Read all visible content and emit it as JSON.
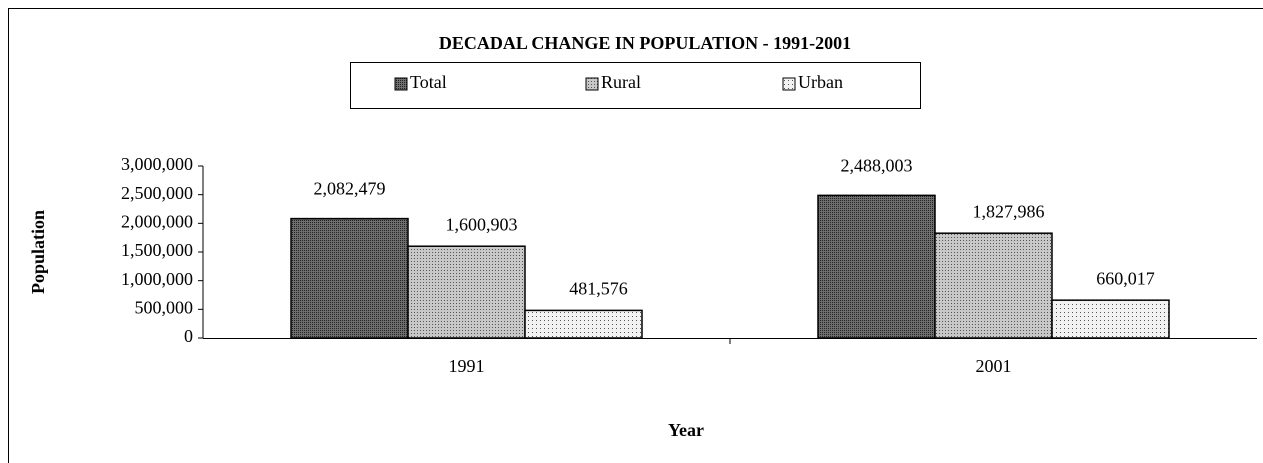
{
  "chart_data": {
    "type": "bar",
    "title": "DECADAL CHANGE IN POPULATION - 1991-2001",
    "xlabel": "Year",
    "ylabel": "Population",
    "categories": [
      "1991",
      "2001"
    ],
    "series": [
      {
        "name": "Total",
        "color": "#6e6e6e",
        "values": [
          2082479,
          2488003
        ],
        "value_labels": [
          "2,082,479",
          "2,488,003"
        ]
      },
      {
        "name": "Rural",
        "color": "#c8c8c8",
        "values": [
          1600903,
          1827986
        ],
        "value_labels": [
          "1,600,903",
          "1,827,986"
        ]
      },
      {
        "name": "Urban",
        "color": "#f2f2f2",
        "values": [
          481576,
          660017
        ],
        "value_labels": [
          "481,576",
          "660,017"
        ]
      }
    ],
    "ylim": [
      0,
      3000000
    ],
    "yticks": [
      0,
      {
        "value": 500000,
        "label": "500,000"
      },
      {
        "value": 1000000,
        "label": "1,000,000"
      },
      {
        "value": 1500000,
        "label": "1,500,000"
      },
      {
        "value": 2000000,
        "label": "2,000,000"
      },
      {
        "value": 2500000,
        "label": "2,500,000"
      },
      {
        "value": 3000000,
        "label": "3,000,000"
      }
    ],
    "legend": "top"
  }
}
